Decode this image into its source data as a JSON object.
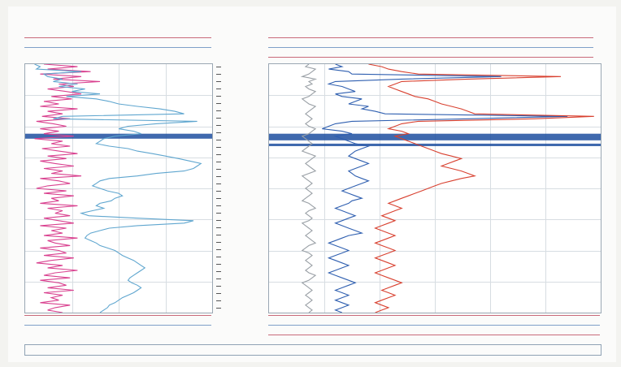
{
  "header_left": {
    "row1": {
      "left": "",
      "mid": "",
      "right": ""
    },
    "row2": {
      "left": "",
      "mid": "",
      "right": ""
    }
  },
  "header_right": {
    "row1": {
      "left": "",
      "mid": "",
      "right": ""
    },
    "row2": {
      "left": "",
      "mid": "",
      "right": ""
    },
    "row3": {
      "left": "",
      "mid": "",
      "right": ""
    }
  },
  "footer_left": {
    "row1": {
      "left": "",
      "mid": "",
      "right": ""
    },
    "row2": {
      "left": "",
      "mid": "",
      "right": ""
    }
  },
  "footer_right": {
    "row1": {
      "left": "",
      "mid": "",
      "right": ""
    },
    "row2": {
      "left": "",
      "mid": "",
      "right": ""
    },
    "row3": {
      "left": "",
      "mid": "",
      "right": ""
    }
  },
  "bottom_caption": "",
  "depth_labels": [
    "",
    "",
    "",
    "",
    "",
    "",
    "",
    ""
  ],
  "colors": {
    "pink": "#d9418f",
    "blue": "#2f5fb0",
    "lightblue": "#5fa6cf",
    "red": "#d8402f",
    "gray": "#9aa0a6"
  },
  "chart_data": {
    "type": "line",
    "title": "",
    "ylabel": "",
    "xlabel": "",
    "grid": true,
    "depth": [
      0,
      3,
      6,
      9,
      12,
      15,
      18,
      21,
      24,
      27,
      30,
      33,
      36,
      39,
      42,
      45,
      48,
      51,
      54,
      57,
      60,
      63,
      66,
      69,
      72,
      75,
      78,
      81,
      84,
      87,
      90,
      93,
      96,
      99,
      102,
      105,
      108,
      111,
      114,
      117,
      120,
      123,
      126,
      129,
      132,
      135,
      138,
      141,
      144,
      147,
      150,
      153,
      156,
      159,
      162,
      165,
      168,
      171,
      174,
      177,
      180,
      183,
      186,
      189,
      192,
      195,
      198,
      201,
      204,
      207,
      210,
      213,
      216,
      219,
      222,
      225,
      228,
      231,
      234,
      237,
      240,
      243,
      246,
      249,
      252,
      255,
      258,
      261,
      264,
      267,
      270,
      273,
      276,
      279,
      282,
      285,
      288,
      291,
      294,
      297,
      300
    ],
    "tracks": [
      {
        "series": [
          {
            "name": "",
            "color": "pink",
            "xlim": [
              0,
              100
            ],
            "values": [
              10,
              28,
              12,
              35,
              8,
              30,
              15,
              40,
              18,
              26,
              12,
              22,
              30,
              14,
              25,
              10,
              18,
              8,
              28,
              12,
              20,
              9,
              24,
              6,
              15,
              22,
              8,
              18,
              10,
              26,
              5,
              20,
              14,
              24,
              9,
              18,
              28,
              12,
              22,
              8,
              16,
              26,
              10,
              20,
              14,
              30,
              8,
              18,
              24,
              12,
              6,
              22,
              10,
              26,
              14,
              18,
              8,
              28,
              12,
              20,
              16,
              24,
              10,
              18,
              26,
              8,
              22,
              14,
              20,
              10,
              28,
              12,
              16,
              24,
              8,
              18,
              22,
              10,
              26,
              14,
              6,
              20,
              12,
              28,
              16,
              10,
              24,
              8,
              18,
              22,
              12,
              26,
              10,
              20,
              14,
              18,
              8,
              24,
              16,
              12,
              20
            ],
            "label_name": "pink-curve"
          },
          {
            "name": "",
            "color": "lightblue",
            "xlim": [
              0,
              100
            ],
            "values": [
              5,
              8,
              6,
              30,
              10,
              12,
              20,
              15,
              28,
              18,
              32,
              25,
              40,
              22,
              38,
              45,
              50,
              60,
              72,
              80,
              85,
              20,
              15,
              92,
              70,
              55,
              50,
              58,
              62,
              48,
              42,
              40,
              38,
              45,
              55,
              60,
              68,
              75,
              82,
              88,
              94,
              92,
              90,
              85,
              70,
              60,
              45,
              40,
              38,
              36,
              40,
              44,
              50,
              52,
              48,
              46,
              40,
              38,
              42,
              36,
              30,
              34,
              60,
              90,
              85,
              60,
              45,
              40,
              35,
              33,
              32,
              35,
              38,
              40,
              44,
              48,
              50,
              52,
              55,
              58,
              60,
              62,
              64,
              62,
              60,
              58,
              56,
              55,
              57,
              60,
              62,
              60,
              58,
              55,
              52,
              50,
              48,
              45,
              44,
              42,
              40
            ],
            "label_name": "lightblue-curve"
          }
        ]
      },
      {
        "series": [
          {
            "name": "",
            "color": "gray",
            "xlim": [
              0,
              100
            ],
            "values": [
              12,
              11,
              14,
              13,
              12,
              10,
              14,
              12,
              13,
              11,
              12,
              14,
              13,
              12,
              10,
              11,
              12,
              14,
              13,
              12,
              11,
              12,
              13,
              12,
              11,
              12,
              14,
              13,
              12,
              10,
              11,
              12,
              13,
              12,
              11,
              10,
              12,
              14,
              13,
              12,
              11,
              12,
              13,
              14,
              12,
              10,
              11,
              12,
              13,
              12,
              11,
              12,
              13,
              12,
              11,
              10,
              12,
              13,
              14,
              12,
              11,
              12,
              13,
              12,
              10,
              11,
              12,
              13,
              12,
              11,
              12,
              13,
              14,
              12,
              11,
              10,
              12,
              13,
              12,
              11,
              12,
              13,
              12,
              11,
              12,
              14,
              13,
              12,
              10,
              11,
              12,
              13,
              12,
              11,
              12,
              13,
              12,
              11,
              12,
              13,
              12
            ],
            "label_name": "gray-curve"
          },
          {
            "name": "",
            "color": "blue",
            "xlim": [
              0,
              100
            ],
            "values": [
              20,
              22,
              18,
              24,
              25,
              70,
              40,
              20,
              18,
              22,
              24,
              26,
              20,
              22,
              28,
              26,
              24,
              30,
              28,
              32,
              35,
              90,
              60,
              25,
              20,
              18,
              16,
              22,
              25,
              20,
              22,
              24,
              26,
              30,
              28,
              26,
              25,
              24,
              26,
              28,
              30,
              28,
              26,
              24,
              25,
              26,
              28,
              30,
              28,
              26,
              24,
              22,
              24,
              26,
              28,
              25,
              24,
              22,
              20,
              22,
              24,
              26,
              24,
              22,
              20,
              22,
              24,
              26,
              28,
              24,
              22,
              20,
              18,
              20,
              22,
              24,
              22,
              20,
              18,
              20,
              22,
              24,
              22,
              20,
              18,
              20,
              22,
              24,
              26,
              24,
              22,
              20,
              22,
              24,
              22,
              20,
              22,
              24,
              22,
              20,
              22
            ],
            "label_name": "blue-curve"
          },
          {
            "name": "",
            "color": "red",
            "xlim": [
              0,
              100
            ],
            "values": [
              30,
              34,
              36,
              40,
              45,
              88,
              60,
              40,
              38,
              36,
              38,
              40,
              42,
              44,
              48,
              50,
              52,
              55,
              58,
              60,
              62,
              98,
              80,
              45,
              40,
              38,
              36,
              40,
              42,
              38,
              40,
              42,
              44,
              46,
              48,
              50,
              52,
              55,
              58,
              56,
              54,
              52,
              55,
              58,
              60,
              62,
              58,
              55,
              52,
              50,
              48,
              46,
              44,
              42,
              40,
              38,
              36,
              38,
              40,
              38,
              36,
              34,
              36,
              38,
              36,
              34,
              32,
              34,
              36,
              38,
              36,
              34,
              32,
              34,
              36,
              38,
              36,
              34,
              32,
              34,
              36,
              38,
              36,
              34,
              32,
              34,
              36,
              38,
              40,
              38,
              36,
              34,
              36,
              38,
              36,
              34,
              32,
              34,
              36,
              34,
              32
            ],
            "label_name": "red-curve"
          }
        ]
      }
    ],
    "bands": [
      {
        "track": 0,
        "depth_from": 84,
        "depth_to": 90,
        "color": "#1d4fa0"
      },
      {
        "track": 1,
        "depth_from": 84,
        "depth_to": 92,
        "color": "#1d4fa0"
      },
      {
        "track": 1,
        "depth_from": 96,
        "depth_to": 99,
        "color": "#1d4fa0"
      }
    ]
  }
}
